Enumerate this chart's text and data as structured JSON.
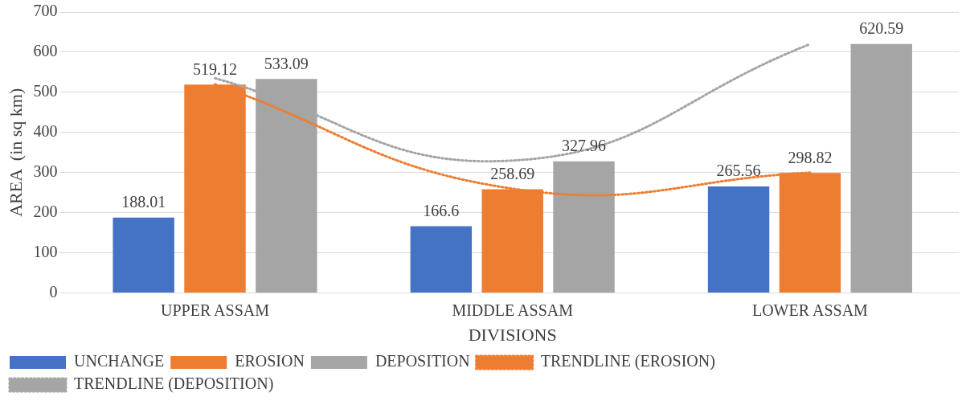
{
  "chart_data": {
    "type": "bar",
    "xlabel": "DIVISIONS",
    "ylabel": "AREA  (in sq km)",
    "categories": [
      "UPPER ASSAM",
      "MIDDLE ASSAM",
      "LOWER ASSAM"
    ],
    "series": [
      {
        "name": "UNCHANGE",
        "color": "#4472c4",
        "values": [
          188.01,
          166.6,
          265.56
        ],
        "value_labels": [
          "188.01",
          "166.6",
          "265.56"
        ]
      },
      {
        "name": "EROSION",
        "color": "#ed7d31",
        "values": [
          519.12,
          258.69,
          298.82
        ],
        "value_labels": [
          "519.12",
          "258.69",
          "298.82"
        ]
      },
      {
        "name": "DEPOSITION",
        "color": "#a5a5a5",
        "values": [
          533.09,
          327.96,
          620.59
        ],
        "value_labels": [
          "533.09",
          "327.96",
          "620.59"
        ]
      },
      {
        "name": "TRENDLINE (EROSION)",
        "type": "line",
        "color": "#ed7d31",
        "line_style": "dotted",
        "marker": "none",
        "values": [
          520,
          260,
          300
        ]
      },
      {
        "name": "TRENDLINE (DEPOSITION)",
        "type": "line",
        "color": "#a5a5a5",
        "line_style": "dotted",
        "marker": "none",
        "values": [
          535,
          330,
          620
        ]
      }
    ],
    "ylim": [
      0,
      700
    ],
    "yticks": [
      0,
      100,
      200,
      300,
      400,
      500,
      600,
      700
    ],
    "grid": "y",
    "legend": "bottom"
  }
}
